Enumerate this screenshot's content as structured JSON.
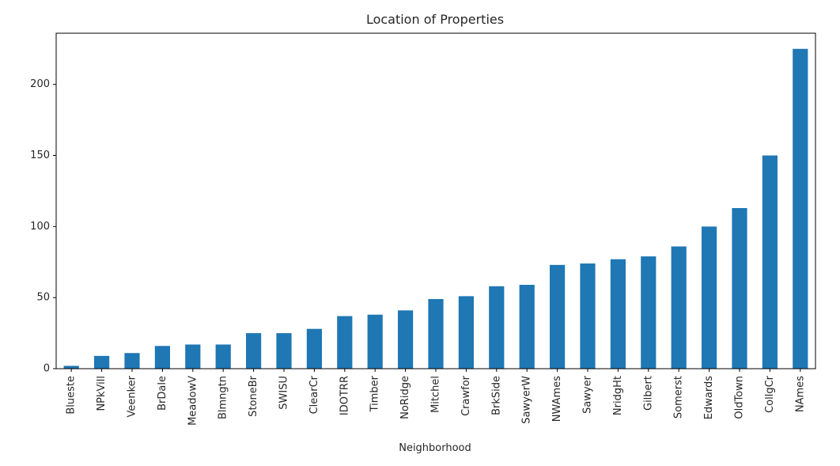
{
  "chart_data": {
    "type": "bar",
    "title": "Location of Properties",
    "xlabel": "Neighborhood",
    "ylabel": "",
    "categories": [
      "Blueste",
      "NPkVill",
      "Veenker",
      "BrDale",
      "MeadowV",
      "Blmngtn",
      "StoneBr",
      "SWISU",
      "ClearCr",
      "IDOTRR",
      "Timber",
      "NoRidge",
      "Mitchel",
      "Crawfor",
      "BrkSide",
      "SawyerW",
      "NWAmes",
      "Sawyer",
      "NridgHt",
      "Gilbert",
      "Somerst",
      "Edwards",
      "OldTown",
      "CollgCr",
      "NAmes"
    ],
    "values": [
      2,
      9,
      11,
      16,
      17,
      17,
      25,
      25,
      28,
      37,
      38,
      41,
      49,
      51,
      58,
      59,
      73,
      74,
      77,
      79,
      86,
      100,
      113,
      150,
      225
    ],
    "ylim": [
      0,
      236
    ],
    "yticks": [
      0,
      50,
      100,
      150,
      200
    ],
    "bar_color": "#1f77b4",
    "grid": false,
    "legend": "none"
  }
}
